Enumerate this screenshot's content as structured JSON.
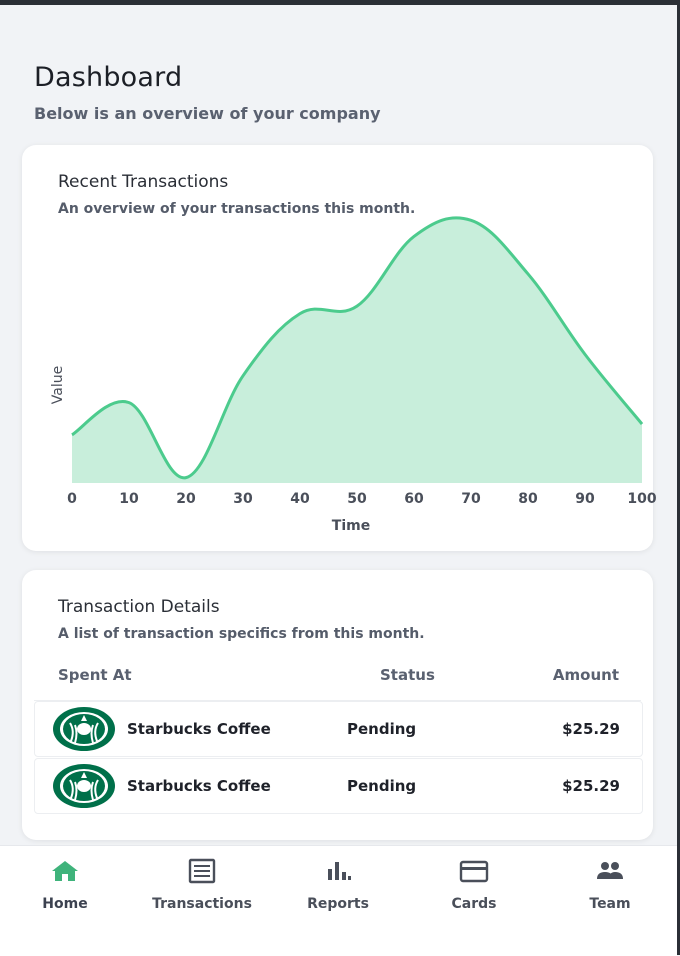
{
  "header": {
    "title": "Dashboard",
    "subtitle": "Below is an overview of your company"
  },
  "chart_card": {
    "title": "Recent Transactions",
    "subtitle": "An overview of your transactions this month."
  },
  "chart_data": {
    "type": "area",
    "xlabel": "Time",
    "ylabel": "Value",
    "x": [
      0,
      10,
      20,
      30,
      40,
      50,
      60,
      70,
      80,
      90,
      100
    ],
    "values": [
      45,
      75,
      5,
      100,
      158,
      165,
      230,
      245,
      195,
      120,
      55
    ],
    "xlim": [
      0,
      100
    ],
    "ylim": [
      0,
      250
    ],
    "x_ticks": [
      "0",
      "10",
      "20",
      "30",
      "40",
      "50",
      "60",
      "70",
      "80",
      "90",
      "100"
    ],
    "colors": {
      "fill": "#c8eedb",
      "line": "#4ccb8d"
    },
    "grid": false
  },
  "table_card": {
    "title": "Transaction Details",
    "subtitle": "A list of transaction specifics from this month.",
    "columns": [
      "Spent At",
      "Status",
      "Amount"
    ],
    "rows": [
      {
        "logo": "starbucks-logo",
        "name": "Starbucks Coffee",
        "status": "Pending",
        "amount": "$25.29"
      },
      {
        "logo": "starbucks-logo",
        "name": "Starbucks Coffee",
        "status": "Pending",
        "amount": "$25.29"
      }
    ]
  },
  "nav": {
    "active": "Home",
    "items": [
      {
        "label": "Home",
        "icon": "home-icon"
      },
      {
        "label": "Transactions",
        "icon": "list-icon"
      },
      {
        "label": "Reports",
        "icon": "bar-chart-icon"
      },
      {
        "label": "Cards",
        "icon": "credit-card-icon"
      },
      {
        "label": "Team",
        "icon": "people-icon"
      }
    ]
  },
  "colors": {
    "accent": "#3fb37b",
    "brand_green": "#00704a"
  }
}
